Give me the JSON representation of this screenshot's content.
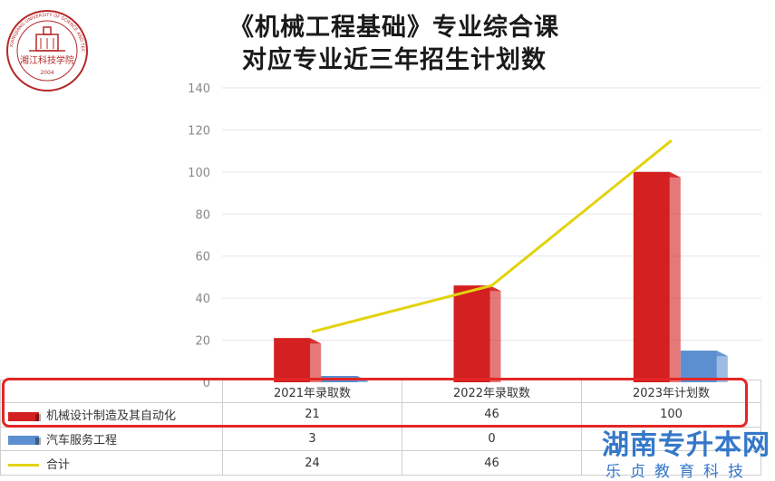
{
  "logo": {
    "text": "湘江科技学院",
    "year": "2004",
    "ring_text": "XIANGJIANG UNIVERSITY OF SCIENCE AND TECHNOLOGY"
  },
  "header": {
    "title_line1": "《机械工程基础》专业综合课",
    "title_line2": "对应专业近三年招生计划数"
  },
  "chart_data": {
    "type": "bar",
    "title": "《机械工程基础》专业综合课 对应专业近三年招生计划数",
    "categories": [
      "2021年录取数",
      "2022年录取数",
      "2023年计划数"
    ],
    "series": [
      {
        "name": "机械设计制造及其自动化",
        "type": "bar",
        "color": "#d42020",
        "values": [
          21,
          46,
          100
        ]
      },
      {
        "name": "汽车服务工程",
        "type": "bar",
        "color": "#5b8fd0",
        "values": [
          3,
          0,
          15
        ]
      },
      {
        "name": "合计",
        "type": "line",
        "color": "#e2d30e",
        "values": [
          24,
          46,
          115
        ]
      }
    ],
    "y_ticks": [
      0,
      20,
      40,
      60,
      80,
      100,
      120,
      140
    ],
    "ylim": [
      0,
      140
    ],
    "grid": true,
    "legend": "data-table"
  },
  "table": {
    "rows": [
      {
        "key_style": "box",
        "color": "#d42020",
        "values": [
          "21",
          "46",
          "100"
        ]
      },
      {
        "key_style": "box",
        "color": "#5b8fd0",
        "values": [
          "3",
          "0",
          ""
        ]
      },
      {
        "key_style": "line",
        "color": "#e2d30e",
        "values": [
          "24",
          "46",
          ""
        ]
      }
    ]
  },
  "watermark": {
    "title": "湖南专升本网",
    "subtitle": "乐贞教育科技"
  }
}
